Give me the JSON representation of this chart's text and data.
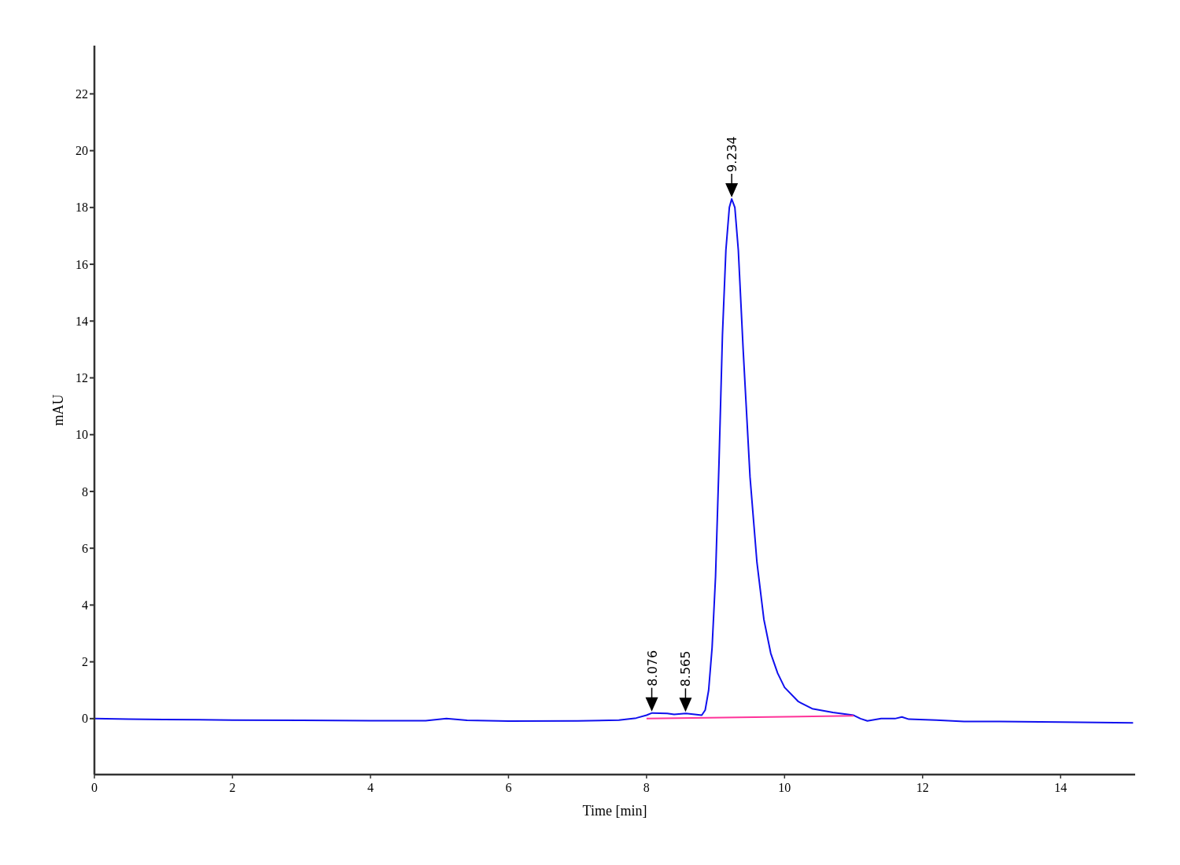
{
  "chart_data": {
    "type": "line",
    "xlabel": "Time [min]",
    "ylabel": "mAU",
    "xlim": [
      0,
      15.08
    ],
    "ylim": [
      -1.97,
      23.7
    ],
    "xticks": [
      0,
      2,
      4,
      6,
      8,
      10,
      12,
      14
    ],
    "yticks": [
      0,
      2,
      4,
      6,
      8,
      10,
      12,
      14,
      16,
      18,
      20,
      22
    ],
    "grid": false,
    "marker": "none",
    "line_style": "solid",
    "series": [
      {
        "color": "#1010ee",
        "x": [
          0,
          0.5,
          1,
          2,
          3,
          4,
          4.8,
          5.1,
          5.4,
          6,
          7,
          7.6,
          7.85,
          8.0,
          8.08,
          8.3,
          8.4,
          8.57,
          8.7,
          8.8,
          8.85,
          8.9,
          8.95,
          9.0,
          9.05,
          9.1,
          9.15,
          9.2,
          9.234,
          9.28,
          9.33,
          9.4,
          9.5,
          9.6,
          9.7,
          9.8,
          9.9,
          10.0,
          10.2,
          10.4,
          10.7,
          11.0,
          11.1,
          11.2,
          11.4,
          11.6,
          11.7,
          11.8,
          12.2,
          12.6,
          13,
          14,
          15.05
        ],
        "values": [
          0,
          -0.02,
          -0.03,
          -0.05,
          -0.06,
          -0.07,
          -0.07,
          0.0,
          -0.06,
          -0.09,
          -0.08,
          -0.05,
          0.02,
          0.12,
          0.2,
          0.18,
          0.15,
          0.18,
          0.15,
          0.12,
          0.3,
          1.0,
          2.5,
          5,
          9,
          13.5,
          16.5,
          18.0,
          18.3,
          18,
          16.5,
          13,
          8.5,
          5.5,
          3.5,
          2.3,
          1.6,
          1.1,
          0.6,
          0.35,
          0.22,
          0.12,
          0.0,
          -0.08,
          0.0,
          0.0,
          0.06,
          -0.02,
          -0.05,
          -0.1,
          -0.1,
          -0.12,
          -0.15
        ]
      },
      {
        "color": "#ff3399",
        "x": [
          8.0,
          11.0
        ],
        "values": [
          0.0,
          0.1
        ]
      }
    ],
    "annotations": [
      {
        "text": "8.076",
        "x": 8.076,
        "y": 0.2
      },
      {
        "text": "8.565",
        "x": 8.565,
        "y": 0.18
      },
      {
        "text": "9.234",
        "x": 9.234,
        "y": 18.3
      }
    ]
  }
}
